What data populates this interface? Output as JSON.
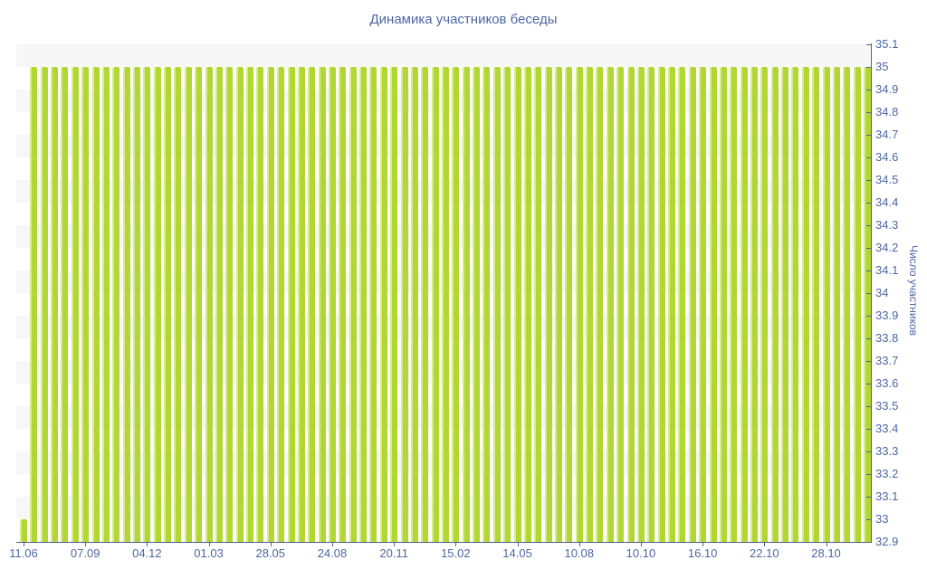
{
  "title": "Динамика участников беседы",
  "colors": {
    "bar": "#b2d735",
    "bar_edge": "#d6eb8a",
    "stripe": "#f7f7f7",
    "axis": "#51618f",
    "text": "#4d67a3"
  },
  "chart_data": {
    "type": "bar",
    "title": "Динамика участников беседы",
    "xlabel": "",
    "ylabel": "Число участников",
    "y_min": 32.9,
    "y_max": 35.1,
    "y_step": 0.1,
    "ylim": [
      32.9,
      35.1
    ],
    "grid": "alternating horizontal bands",
    "legend": "none",
    "y_tick_labels": [
      "35.1",
      "35",
      "34.9",
      "34.8",
      "34.7",
      "34.6",
      "34.5",
      "34.4",
      "34.3",
      "34.2",
      "34.1",
      "34",
      "33.9",
      "33.8",
      "33.7",
      "33.6",
      "33.5",
      "33.4",
      "33.3",
      "33.2",
      "33.1",
      "33",
      "32.9"
    ],
    "x_labels": [
      "11.06",
      "07.09",
      "04.12",
      "01.03",
      "28.05",
      "24.08",
      "20.11",
      "15.02",
      "14.05",
      "10.08",
      "10.10",
      "16.10",
      "22.10",
      "28.10"
    ],
    "label_every": 6,
    "num_bars": 83,
    "values": [
      33,
      35,
      35,
      35,
      35,
      35,
      35,
      35,
      35,
      35,
      35,
      35,
      35,
      35,
      35,
      35,
      35,
      35,
      35,
      35,
      35,
      35,
      35,
      35,
      35,
      35,
      35,
      35,
      35,
      35,
      35,
      35,
      35,
      35,
      35,
      35,
      35,
      35,
      35,
      35,
      35,
      35,
      35,
      35,
      35,
      35,
      35,
      35,
      35,
      35,
      35,
      35,
      35,
      35,
      35,
      35,
      35,
      35,
      35,
      35,
      35,
      35,
      35,
      35,
      35,
      35,
      35,
      35,
      35,
      35,
      35,
      35,
      35,
      35,
      35,
      35,
      35,
      35,
      35,
      35,
      35,
      35,
      35
    ]
  }
}
